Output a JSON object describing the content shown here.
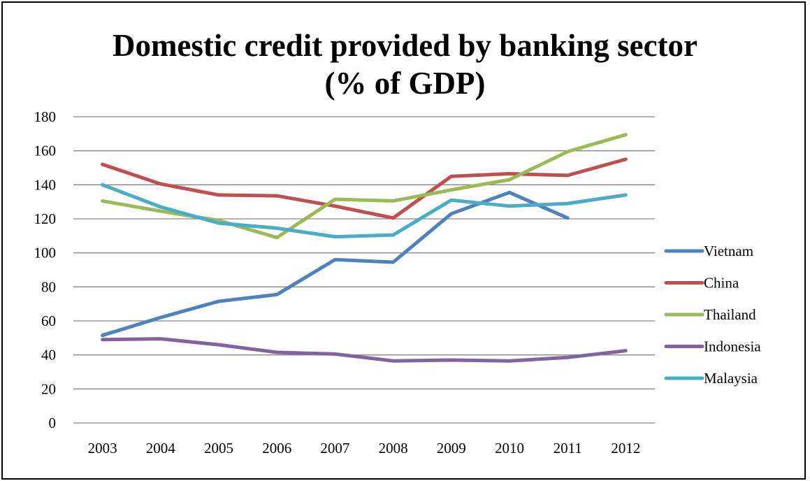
{
  "chart_data": {
    "type": "line",
    "title_line1": "Domestic credit provided by banking sector",
    "title_line2": "(% of GDP)",
    "xlabel": "",
    "ylabel": "",
    "x": [
      "2003",
      "2004",
      "2005",
      "2006",
      "2007",
      "2008",
      "2009",
      "2010",
      "2011",
      "2012"
    ],
    "ylim": [
      0,
      180
    ],
    "yticks": [
      0,
      20,
      40,
      60,
      80,
      100,
      120,
      140,
      160,
      180
    ],
    "grid": true,
    "legend_position": "right",
    "series": [
      {
        "name": "Vietnam",
        "color": "#4F81BD",
        "values": [
          51.5,
          62,
          71.5,
          75.5,
          96,
          94.5,
          123,
          135.5,
          120.5,
          null
        ]
      },
      {
        "name": "China",
        "color": "#C0504D",
        "values": [
          152,
          140.5,
          134,
          133.5,
          127.5,
          120.5,
          145,
          146.5,
          145.5,
          155
        ]
      },
      {
        "name": "Thailand",
        "color": "#9BBB59",
        "values": [
          130.5,
          124.5,
          119,
          109,
          131.5,
          130.5,
          137,
          143,
          159.5,
          169.5
        ]
      },
      {
        "name": "Indonesia",
        "color": "#8064A2",
        "values": [
          49,
          49.5,
          46,
          41.5,
          40.5,
          36.5,
          37,
          36.5,
          38.5,
          42.5
        ]
      },
      {
        "name": "Malaysia",
        "color": "#4BACC6",
        "values": [
          140,
          127,
          117.5,
          114.5,
          109.5,
          110.5,
          131,
          127.5,
          129,
          134
        ]
      }
    ]
  }
}
